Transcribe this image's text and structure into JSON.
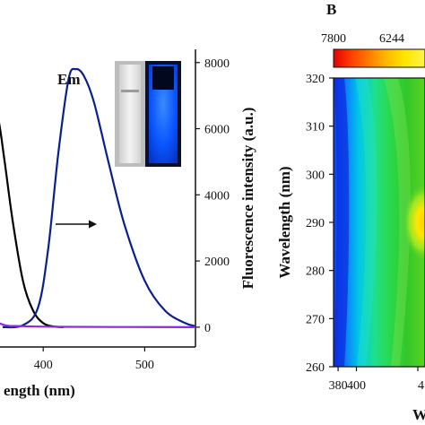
{
  "left_panel": {
    "xlabel": "ength (nm)",
    "ylabel_right": "Fluorescence intensity (a.u.)",
    "x_ticks": [
      "400",
      "500"
    ],
    "y_right_ticks": [
      "0",
      "2000",
      "4000",
      "6000",
      "8000"
    ],
    "em_label": "Em",
    "inset_photos": [
      "cuvette-daylight",
      "cuvette-uv-blue"
    ]
  },
  "right_panel": {
    "panel_letter": "B",
    "colorbar_ticks": [
      "7800",
      "6244"
    ],
    "ylabel": "Wavelength (nm)",
    "y_ticks": [
      "320",
      "310",
      "300",
      "290",
      "280",
      "270",
      "260"
    ],
    "x_ticks": [
      "380",
      "400",
      "4"
    ],
    "xlabel_fragment": "W"
  },
  "chart_data": [
    {
      "type": "line",
      "xlabel": "ength (nm)",
      "ylabel": "Fluorescence intensity (a.u.)",
      "xlim": [
        300,
        550
      ],
      "ylim": [
        -600,
        8400
      ],
      "x_ticks": [
        400,
        500
      ],
      "y_ticks": [
        0,
        2000,
        4000,
        6000,
        8000
      ],
      "series": [
        {
          "color": "#000000",
          "x": [
            330,
            345,
            355,
            362,
            370,
            380,
            390,
            400,
            410,
            420
          ],
          "y": [
            7300,
            7150,
            6400,
            5000,
            3200,
            1400,
            500,
            120,
            20,
            0
          ]
        },
        {
          "name": "Em",
          "color": "#0a1f8f",
          "x": [
            360,
            380,
            395,
            405,
            415,
            425,
            432,
            440,
            450,
            465,
            480,
            500,
            520,
            540,
            550
          ],
          "y": [
            0,
            60,
            600,
            2400,
            5300,
            7500,
            7800,
            7600,
            6800,
            4900,
            3100,
            1400,
            500,
            120,
            30
          ]
        },
        {
          "color": "#8a2be2",
          "x": [
            300,
            340,
            360,
            380,
            420,
            480,
            550
          ],
          "y": [
            1300,
            450,
            80,
            30,
            10,
            5,
            0
          ]
        }
      ]
    },
    {
      "type": "heatmap",
      "ylabel": "Wavelength (nm)",
      "xlim": [
        375,
        475
      ],
      "ylim": [
        260,
        320
      ],
      "x_ticks": [
        380,
        400
      ],
      "y_ticks": [
        260,
        270,
        280,
        290,
        300,
        310,
        320
      ],
      "colorbar_ticks": [
        7800,
        6244
      ]
    }
  ]
}
